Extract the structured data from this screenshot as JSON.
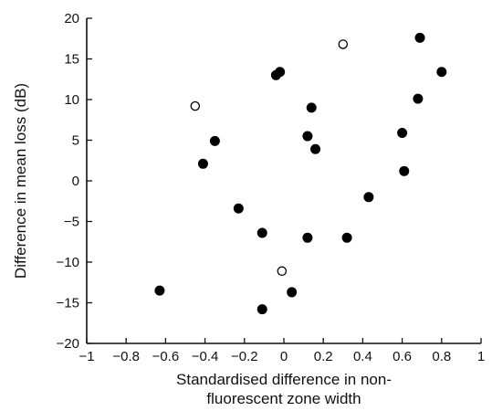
{
  "chart_data": {
    "type": "scatter",
    "title": "",
    "xlabel_lines": [
      "Standardised difference in non-",
      "fluorescent zone width"
    ],
    "ylabel": "Difference in mean loss (dB)",
    "xlim": [
      -1,
      1
    ],
    "ylim": [
      -20,
      20
    ],
    "x_ticks": [
      -1,
      -0.8,
      -0.6,
      -0.4,
      -0.2,
      0,
      0.2,
      0.4,
      0.6,
      0.8,
      1
    ],
    "x_tick_labels": [
      "−1",
      "−0.8",
      "−0.6",
      "−0.4",
      "−0.2",
      "0",
      "0.2",
      "0.4",
      "0.6",
      "0.8",
      "1"
    ],
    "y_ticks": [
      20,
      15,
      10,
      5,
      0,
      -5,
      -10,
      -15,
      -20
    ],
    "y_tick_labels": [
      "20",
      "15",
      "10",
      "5",
      "0",
      "−5",
      "−10",
      "−15",
      "−20"
    ],
    "grid": false,
    "series": [
      {
        "marker": "filled-circle",
        "color": "#000000",
        "points": [
          {
            "x": -0.63,
            "y": -13.5
          },
          {
            "x": -0.41,
            "y": 2.1
          },
          {
            "x": -0.35,
            "y": 4.9
          },
          {
            "x": -0.23,
            "y": -3.4
          },
          {
            "x": -0.11,
            "y": -6.4
          },
          {
            "x": -0.11,
            "y": -15.8
          },
          {
            "x": -0.04,
            "y": 13.0
          },
          {
            "x": -0.02,
            "y": 13.4
          },
          {
            "x": 0.04,
            "y": -13.7
          },
          {
            "x": 0.12,
            "y": 5.5
          },
          {
            "x": 0.12,
            "y": -7.0
          },
          {
            "x": 0.14,
            "y": 9.0
          },
          {
            "x": 0.16,
            "y": 3.9
          },
          {
            "x": 0.32,
            "y": -7.0
          },
          {
            "x": 0.43,
            "y": -2.0
          },
          {
            "x": 0.6,
            "y": 5.9
          },
          {
            "x": 0.61,
            "y": 1.2
          },
          {
            "x": 0.68,
            "y": 10.1
          },
          {
            "x": 0.69,
            "y": 17.6
          },
          {
            "x": 0.8,
            "y": 13.4
          }
        ]
      },
      {
        "marker": "open-circle",
        "color": "#000000",
        "points": [
          {
            "x": -0.45,
            "y": 9.2
          },
          {
            "x": 0.3,
            "y": 16.8
          },
          {
            "x": -0.01,
            "y": -11.1
          }
        ]
      }
    ]
  }
}
